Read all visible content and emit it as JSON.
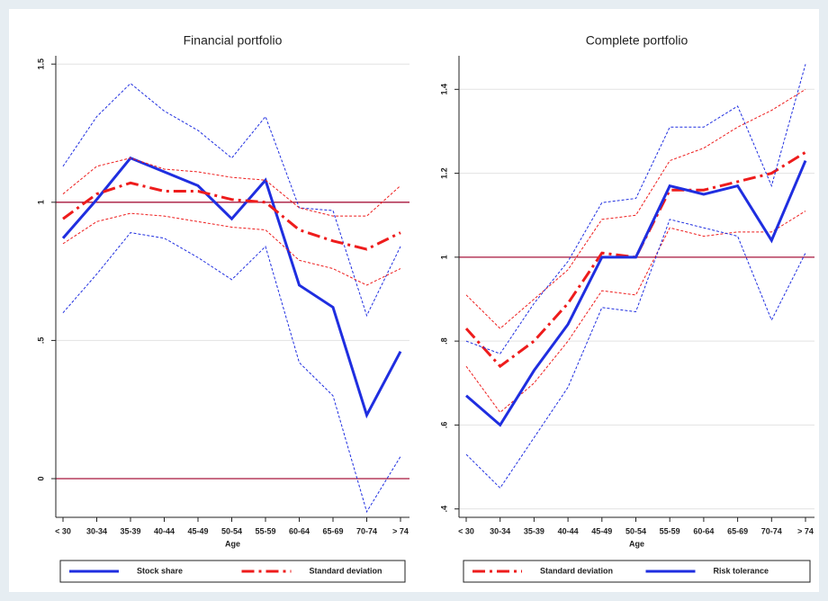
{
  "chart_data": [
    {
      "type": "line",
      "title": "Financial portfolio",
      "x_label": "Age",
      "categories": [
        "< 30",
        "30-34",
        "35-39",
        "40-44",
        "45-49",
        "50-54",
        "55-59",
        "60-64",
        "65-69",
        "70-74",
        "> 74"
      ],
      "ylim": [
        -0.14,
        1.53
      ],
      "yticks": [
        0,
        {
          "value": 0.5,
          "label": ".5"
        },
        1,
        1.5
      ],
      "grid": true,
      "hlines": [
        1,
        0
      ],
      "hline_color": "#a8163c",
      "legend": "bottom",
      "series": [
        {
          "name": "Stock share",
          "color": "#1f2ee0",
          "style": "solid",
          "values": [
            0.87,
            1.01,
            1.16,
            1.11,
            1.06,
            0.94,
            1.08,
            0.7,
            0.62,
            0.23,
            0.46
          ],
          "ci_upper": [
            1.13,
            1.31,
            1.43,
            1.33,
            1.26,
            1.16,
            1.31,
            0.98,
            0.97,
            0.59,
            0.84
          ],
          "ci_lower": [
            0.6,
            0.74,
            0.89,
            0.87,
            0.8,
            0.72,
            0.84,
            0.42,
            0.3,
            -0.12,
            0.08
          ]
        },
        {
          "name": "Standard deviation",
          "color": "#ee1c1c",
          "style": "dashdot",
          "values": [
            0.94,
            1.03,
            1.07,
            1.04,
            1.04,
            1.01,
            1.0,
            0.9,
            0.86,
            0.83,
            0.89
          ],
          "ci_upper": [
            1.03,
            1.13,
            1.16,
            1.12,
            1.11,
            1.09,
            1.08,
            0.98,
            0.95,
            0.95,
            1.06
          ],
          "ci_lower": [
            0.85,
            0.93,
            0.96,
            0.95,
            0.93,
            0.91,
            0.9,
            0.79,
            0.76,
            0.7,
            0.76
          ]
        }
      ]
    },
    {
      "type": "line",
      "title": "Complete portfolio",
      "x_label": "Age",
      "categories": [
        "< 30",
        "30-34",
        "35-39",
        "40-44",
        "45-49",
        "50-54",
        "55-59",
        "60-64",
        "65-69",
        "70-74",
        "> 74"
      ],
      "ylim": [
        0.38,
        1.48
      ],
      "yticks": [
        {
          "value": 0.4,
          "label": ".4"
        },
        {
          "value": 0.6,
          "label": ".6"
        },
        {
          "value": 0.8,
          "label": ".8"
        },
        1,
        1.2,
        1.4
      ],
      "grid": true,
      "hlines": [
        1
      ],
      "hline_color": "#a8163c",
      "legend": "bottom",
      "series": [
        {
          "name": "Standard deviation",
          "color": "#ee1c1c",
          "style": "dashdot",
          "values": [
            0.83,
            0.74,
            0.8,
            0.89,
            1.01,
            1.0,
            1.16,
            1.16,
            1.18,
            1.2,
            1.25
          ],
          "ci_upper": [
            0.91,
            0.83,
            0.9,
            0.97,
            1.09,
            1.1,
            1.23,
            1.26,
            1.31,
            1.35,
            1.4
          ],
          "ci_lower": [
            0.74,
            0.63,
            0.7,
            0.8,
            0.92,
            0.91,
            1.07,
            1.05,
            1.06,
            1.06,
            1.11
          ]
        },
        {
          "name": "Risk tolerance",
          "color": "#1f2ee0",
          "style": "solid",
          "values": [
            0.67,
            0.6,
            0.73,
            0.84,
            1.0,
            1.0,
            1.17,
            1.15,
            1.17,
            1.04,
            1.23
          ],
          "ci_upper": [
            0.8,
            0.77,
            0.89,
            0.99,
            1.13,
            1.14,
            1.31,
            1.31,
            1.36,
            1.17,
            1.46
          ],
          "ci_lower": [
            0.53,
            0.45,
            0.57,
            0.69,
            0.88,
            0.87,
            1.09,
            1.07,
            1.05,
            0.85,
            1.01
          ]
        }
      ]
    }
  ]
}
